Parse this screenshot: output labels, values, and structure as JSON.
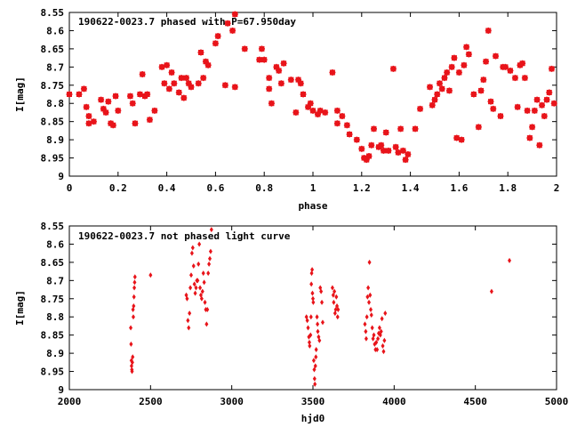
{
  "chart_data": [
    {
      "type": "scatter",
      "title": "190622-0023.7 phased with P=67.950day",
      "xlabel": "phase",
      "ylabel": "I[mag]",
      "xlim": [
        0,
        2
      ],
      "ylim": [
        8.55,
        9.0
      ],
      "y_inverted": true,
      "grid": false,
      "marker": "star",
      "color": "#e8141a",
      "xticks": [
        "0",
        "0.2",
        "0.4",
        "0.6",
        "0.8",
        "1",
        "1.2",
        "1.4",
        "1.6",
        "1.8",
        "2"
      ],
      "yticks": [
        "8.55",
        "8.6",
        "8.65",
        "8.7",
        "8.75",
        "8.8",
        "8.85",
        "8.9",
        "8.95",
        "9"
      ],
      "points": [
        [
          0.0,
          8.775
        ],
        [
          0.04,
          8.775
        ],
        [
          0.06,
          8.76
        ],
        [
          0.07,
          8.81
        ],
        [
          0.08,
          8.835
        ],
        [
          0.08,
          8.855
        ],
        [
          0.1,
          8.85
        ],
        [
          0.13,
          8.79
        ],
        [
          0.14,
          8.815
        ],
        [
          0.15,
          8.825
        ],
        [
          0.16,
          8.795
        ],
        [
          0.17,
          8.855
        ],
        [
          0.18,
          8.86
        ],
        [
          0.19,
          8.78
        ],
        [
          0.2,
          8.82
        ],
        [
          0.25,
          8.78
        ],
        [
          0.26,
          8.8
        ],
        [
          0.27,
          8.855
        ],
        [
          0.29,
          8.775
        ],
        [
          0.3,
          8.72
        ],
        [
          0.31,
          8.78
        ],
        [
          0.32,
          8.775
        ],
        [
          0.33,
          8.845
        ],
        [
          0.35,
          8.82
        ],
        [
          0.38,
          8.7
        ],
        [
          0.39,
          8.745
        ],
        [
          0.4,
          8.695
        ],
        [
          0.41,
          8.76
        ],
        [
          0.42,
          8.715
        ],
        [
          0.43,
          8.745
        ],
        [
          0.45,
          8.77
        ],
        [
          0.46,
          8.73
        ],
        [
          0.47,
          8.785
        ],
        [
          0.48,
          8.73
        ],
        [
          0.49,
          8.745
        ],
        [
          0.5,
          8.755
        ],
        [
          0.53,
          8.745
        ],
        [
          0.54,
          8.66
        ],
        [
          0.55,
          8.73
        ],
        [
          0.56,
          8.685
        ],
        [
          0.57,
          8.695
        ],
        [
          0.6,
          8.635
        ],
        [
          0.61,
          8.615
        ],
        [
          0.64,
          8.75
        ],
        [
          0.65,
          8.58
        ],
        [
          0.67,
          8.6
        ],
        [
          0.68,
          8.755
        ],
        [
          0.68,
          8.555
        ],
        [
          0.72,
          8.65
        ],
        [
          0.78,
          8.68
        ],
        [
          0.79,
          8.65
        ],
        [
          0.8,
          8.68
        ],
        [
          0.82,
          8.73
        ],
        [
          0.82,
          8.76
        ],
        [
          0.83,
          8.8
        ],
        [
          0.85,
          8.7
        ],
        [
          0.86,
          8.71
        ],
        [
          0.87,
          8.745
        ],
        [
          0.88,
          8.69
        ],
        [
          0.91,
          8.735
        ],
        [
          0.93,
          8.825
        ],
        [
          0.94,
          8.735
        ],
        [
          0.95,
          8.745
        ],
        [
          0.96,
          8.775
        ],
        [
          0.98,
          8.81
        ],
        [
          0.99,
          8.8
        ],
        [
          1.0,
          8.82
        ],
        [
          1.02,
          8.83
        ],
        [
          1.03,
          8.82
        ],
        [
          1.05,
          8.825
        ],
        [
          1.08,
          8.715
        ],
        [
          1.1,
          8.82
        ],
        [
          1.12,
          8.835
        ],
        [
          1.14,
          8.86
        ],
        [
          1.15,
          8.885
        ],
        [
          1.18,
          8.9
        ],
        [
          1.2,
          8.925
        ],
        [
          1.21,
          8.95
        ],
        [
          1.22,
          8.955
        ],
        [
          1.23,
          8.945
        ],
        [
          1.24,
          8.915
        ],
        [
          1.25,
          8.87
        ],
        [
          1.27,
          8.92
        ],
        [
          1.28,
          8.915
        ],
        [
          1.29,
          8.93
        ],
        [
          1.3,
          8.88
        ],
        [
          1.31,
          8.93
        ],
        [
          1.33,
          8.705
        ],
        [
          1.34,
          8.92
        ],
        [
          1.35,
          8.935
        ],
        [
          1.36,
          8.87
        ],
        [
          1.37,
          8.93
        ],
        [
          1.38,
          8.955
        ],
        [
          1.39,
          8.94
        ],
        [
          1.42,
          8.87
        ],
        [
          1.44,
          8.815
        ],
        [
          1.48,
          8.755
        ],
        [
          1.49,
          8.805
        ],
        [
          1.5,
          8.79
        ],
        [
          1.51,
          8.775
        ],
        [
          1.52,
          8.745
        ],
        [
          1.53,
          8.76
        ],
        [
          1.54,
          8.73
        ],
        [
          1.55,
          8.715
        ],
        [
          1.56,
          8.765
        ],
        [
          1.57,
          8.7
        ],
        [
          1.58,
          8.675
        ],
        [
          1.59,
          8.895
        ],
        [
          1.6,
          8.715
        ],
        [
          1.61,
          8.9
        ],
        [
          1.62,
          8.695
        ],
        [
          1.63,
          8.645
        ],
        [
          1.64,
          8.665
        ],
        [
          1.66,
          8.775
        ],
        [
          1.68,
          8.865
        ],
        [
          1.69,
          8.765
        ],
        [
          1.7,
          8.735
        ],
        [
          1.71,
          8.685
        ],
        [
          1.72,
          8.6
        ],
        [
          1.73,
          8.795
        ],
        [
          1.74,
          8.815
        ],
        [
          1.75,
          8.67
        ],
        [
          1.77,
          8.835
        ],
        [
          1.78,
          8.7
        ],
        [
          1.79,
          8.7
        ],
        [
          1.81,
          8.71
        ],
        [
          1.83,
          8.73
        ],
        [
          1.84,
          8.81
        ],
        [
          1.85,
          8.695
        ],
        [
          1.86,
          8.69
        ],
        [
          1.87,
          8.73
        ],
        [
          1.88,
          8.82
        ],
        [
          1.89,
          8.895
        ],
        [
          1.9,
          8.865
        ],
        [
          1.91,
          8.82
        ],
        [
          1.92,
          8.79
        ],
        [
          1.93,
          8.915
        ],
        [
          1.94,
          8.805
        ],
        [
          1.95,
          8.835
        ],
        [
          1.96,
          8.79
        ],
        [
          1.97,
          8.77
        ],
        [
          1.98,
          8.705
        ],
        [
          1.99,
          8.8
        ],
        [
          1.1,
          8.855
        ]
      ]
    },
    {
      "type": "scatter",
      "title": "190622-0023.7 not phased light curve",
      "xlabel": "hjd0",
      "ylabel": "I[mag]",
      "xlim": [
        2000,
        5000
      ],
      "ylim": [
        8.55,
        9.0
      ],
      "y_inverted": true,
      "grid": false,
      "marker": "diamond",
      "color": "#e8141a",
      "xticks": [
        "2000",
        "2500",
        "3000",
        "3500",
        "4000",
        "4500",
        "5000"
      ],
      "yticks": [
        "8.55",
        "8.6",
        "8.65",
        "8.7",
        "8.75",
        "8.8",
        "8.85",
        "8.9",
        "8.95",
        "9"
      ],
      "points": [
        [
          2378,
          8.83
        ],
        [
          2380,
          8.875
        ],
        [
          2382,
          8.92
        ],
        [
          2383,
          8.935
        ],
        [
          2385,
          8.945
        ],
        [
          2386,
          8.95
        ],
        [
          2388,
          8.925
        ],
        [
          2390,
          8.91
        ],
        [
          2392,
          8.78
        ],
        [
          2394,
          8.8
        ],
        [
          2396,
          8.77
        ],
        [
          2398,
          8.745
        ],
        [
          2400,
          8.72
        ],
        [
          2402,
          8.705
        ],
        [
          2404,
          8.69
        ],
        [
          2500,
          8.685
        ],
        [
          2720,
          8.74
        ],
        [
          2725,
          8.75
        ],
        [
          2730,
          8.81
        ],
        [
          2735,
          8.83
        ],
        [
          2740,
          8.79
        ],
        [
          2745,
          8.72
        ],
        [
          2750,
          8.685
        ],
        [
          2755,
          8.625
        ],
        [
          2760,
          8.61
        ],
        [
          2765,
          8.66
        ],
        [
          2770,
          8.71
        ],
        [
          2775,
          8.735
        ],
        [
          2780,
          8.72
        ],
        [
          2785,
          8.7
        ],
        [
          2790,
          8.7
        ],
        [
          2795,
          8.655
        ],
        [
          2800,
          8.6
        ],
        [
          2805,
          8.72
        ],
        [
          2810,
          8.74
        ],
        [
          2815,
          8.75
        ],
        [
          2820,
          8.73
        ],
        [
          2825,
          8.68
        ],
        [
          2830,
          8.705
        ],
        [
          2835,
          8.76
        ],
        [
          2840,
          8.78
        ],
        [
          2845,
          8.82
        ],
        [
          2850,
          8.78
        ],
        [
          2855,
          8.68
        ],
        [
          2860,
          8.655
        ],
        [
          2865,
          8.64
        ],
        [
          2870,
          8.62
        ],
        [
          2875,
          8.56
        ],
        [
          3460,
          8.8
        ],
        [
          3465,
          8.81
        ],
        [
          3470,
          8.83
        ],
        [
          3475,
          8.855
        ],
        [
          3478,
          8.87
        ],
        [
          3480,
          8.88
        ],
        [
          3485,
          8.85
        ],
        [
          3488,
          8.8
        ],
        [
          3490,
          8.71
        ],
        [
          3492,
          8.68
        ],
        [
          3495,
          8.67
        ],
        [
          3497,
          8.735
        ],
        [
          3500,
          8.75
        ],
        [
          3502,
          8.76
        ],
        [
          3505,
          8.92
        ],
        [
          3508,
          8.945
        ],
        [
          3510,
          8.97
        ],
        [
          3512,
          8.985
        ],
        [
          3515,
          8.935
        ],
        [
          3518,
          8.91
        ],
        [
          3520,
          8.89
        ],
        [
          3525,
          8.8
        ],
        [
          3528,
          8.82
        ],
        [
          3530,
          8.84
        ],
        [
          3535,
          8.855
        ],
        [
          3540,
          8.865
        ],
        [
          3545,
          8.72
        ],
        [
          3550,
          8.73
        ],
        [
          3555,
          8.76
        ],
        [
          3560,
          8.815
        ],
        [
          3620,
          8.72
        ],
        [
          3625,
          8.74
        ],
        [
          3628,
          8.76
        ],
        [
          3632,
          8.73
        ],
        [
          3636,
          8.79
        ],
        [
          3640,
          8.78
        ],
        [
          3644,
          8.745
        ],
        [
          3648,
          8.77
        ],
        [
          3652,
          8.8
        ],
        [
          3655,
          8.78
        ],
        [
          3820,
          8.82
        ],
        [
          3825,
          8.84
        ],
        [
          3828,
          8.86
        ],
        [
          3832,
          8.8
        ],
        [
          3836,
          8.745
        ],
        [
          3840,
          8.72
        ],
        [
          3845,
          8.76
        ],
        [
          3848,
          8.65
        ],
        [
          3852,
          8.74
        ],
        [
          3856,
          8.78
        ],
        [
          3860,
          8.795
        ],
        [
          3865,
          8.83
        ],
        [
          3870,
          8.86
        ],
        [
          3875,
          8.85
        ],
        [
          3880,
          8.875
        ],
        [
          3885,
          8.89
        ],
        [
          3890,
          8.87
        ],
        [
          3895,
          8.89
        ],
        [
          3900,
          8.86
        ],
        [
          3905,
          8.845
        ],
        [
          3910,
          8.83
        ],
        [
          3915,
          8.85
        ],
        [
          3920,
          8.84
        ],
        [
          3925,
          8.805
        ],
        [
          3930,
          8.88
        ],
        [
          3935,
          8.895
        ],
        [
          3940,
          8.865
        ],
        [
          3945,
          8.79
        ],
        [
          4600,
          8.73
        ],
        [
          4710,
          8.645
        ]
      ]
    }
  ]
}
